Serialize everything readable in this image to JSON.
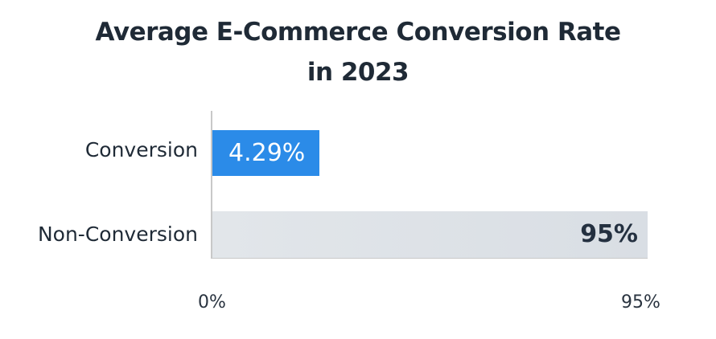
{
  "chart_data": {
    "type": "bar",
    "orientation": "horizontal",
    "title": "Average E-Commerce Conversion Rate in 2023",
    "title_lines": [
      "Average E-Commerce Conversion Rate",
      "in 2023"
    ],
    "categories": [
      "Conversion",
      "Non-Conversion"
    ],
    "values": [
      4.29,
      95
    ],
    "value_labels": [
      "4.29%",
      "95%"
    ],
    "colors": [
      "#2b8be8",
      "#dde2e7"
    ],
    "xlabel": "",
    "ylabel": "",
    "x_ticks": [
      "0%",
      "95%"
    ],
    "xlim": [
      0,
      95
    ],
    "grid": false,
    "legend": null
  }
}
